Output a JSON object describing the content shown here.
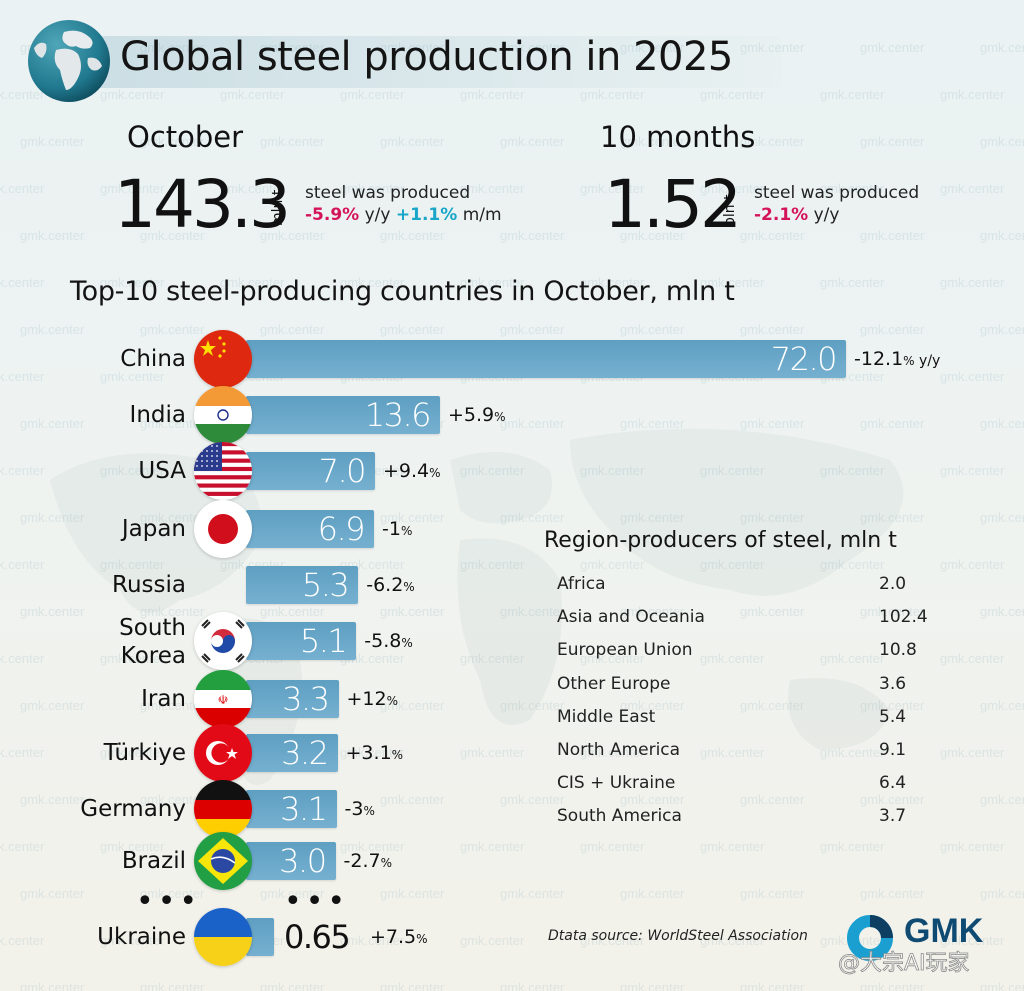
{
  "header": {
    "title": "Global steel production in 2025"
  },
  "summary": {
    "month": {
      "period": "October",
      "value": "143.3",
      "unit": "mln t",
      "description": "steel was produced",
      "yoy": "-5.9%",
      "yoy_suffix": "y/y",
      "mom": "+1.1%",
      "mom_suffix": "m/m"
    },
    "ytd": {
      "period": "10 months",
      "value": "1.52",
      "unit": "bln t",
      "description": "steel was produced",
      "yoy": "-2.1%",
      "yoy_suffix": "y/y"
    }
  },
  "chart_data": {
    "type": "bar",
    "title": "Top-10 steel-producing countries in October, mln t",
    "xlabel": "",
    "ylabel": "mln t",
    "categories": [
      "China",
      "India",
      "USA",
      "Japan",
      "Russia",
      "South Korea",
      "Iran",
      "Türkiye",
      "Germany",
      "Brazil",
      "Ukraine"
    ],
    "values": [
      72.0,
      13.6,
      7.0,
      6.9,
      5.3,
      5.1,
      3.3,
      3.2,
      3.1,
      3.0,
      0.65
    ],
    "value_labels": [
      "72.0",
      "13.6",
      "7.0",
      "6.9",
      "5.3",
      "5.1",
      "3.3",
      "3.2",
      "3.1",
      "3.0",
      "0.65"
    ],
    "changes": [
      "-12.1",
      "+5.9",
      "+9.4",
      "-1",
      "-6.2",
      "-5.8",
      "+12",
      "+3.1",
      "-3",
      "-2.7",
      "+7.5"
    ],
    "change_unit": "%",
    "first_change_suffix": "y/y",
    "gap_marker": "•••",
    "orientation": "horizontal",
    "grid": false
  },
  "countries": [
    {
      "name": "China",
      "flag": "china-flag-icon"
    },
    {
      "name": "India",
      "flag": "india-flag-icon"
    },
    {
      "name": "USA",
      "flag": "usa-flag-icon"
    },
    {
      "name": "Japan",
      "flag": "japan-flag-icon"
    },
    {
      "name": "Russia",
      "flag": ""
    },
    {
      "name": "South Korea",
      "flag": "south-korea-flag-icon"
    },
    {
      "name": "Iran",
      "flag": "iran-flag-icon"
    },
    {
      "name": "Türkiye",
      "flag": "turkiye-flag-icon"
    },
    {
      "name": "Germany",
      "flag": "germany-flag-icon"
    },
    {
      "name": "Brazil",
      "flag": "brazil-flag-icon"
    },
    {
      "name": "Ukraine",
      "flag": "ukraine-flag-icon"
    }
  ],
  "regions": {
    "title": "Region-producers of steel, mln t",
    "rows": [
      {
        "name": "Africa",
        "value": "2.0"
      },
      {
        "name": "Asia and Oceania",
        "value": "102.4"
      },
      {
        "name": "European Union",
        "value": "10.8"
      },
      {
        "name": "Other Europe",
        "value": "3.6"
      },
      {
        "name": "Middle East",
        "value": "5.4"
      },
      {
        "name": "North America",
        "value": "9.1"
      },
      {
        "name": "CIS + Ukraine",
        "value": "6.4"
      },
      {
        "name": "South America",
        "value": "3.7"
      }
    ]
  },
  "footer": {
    "source": "Dtata source: WorldSteel Association",
    "logo_text": "GMK",
    "watermark": "@大宗AI玩家"
  },
  "watermark_text": "gmk.center",
  "colors": {
    "bar": "#6aa8ca",
    "negative": "#d4145a",
    "positive": "#1aa6c9",
    "logo": "#0e4a72"
  }
}
